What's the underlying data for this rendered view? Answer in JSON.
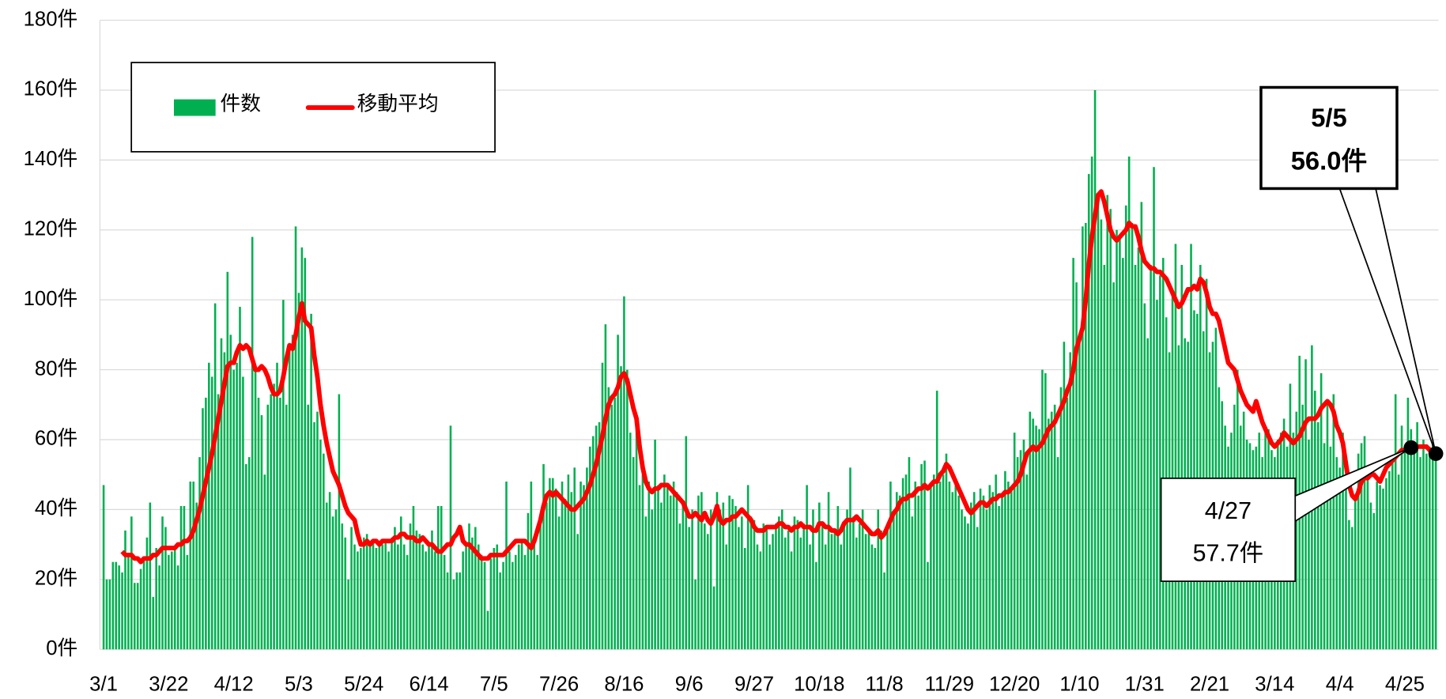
{
  "chart_data": {
    "type": "bar",
    "categories": [
      "3/1",
      null,
      null,
      null,
      null,
      null,
      null,
      null,
      null,
      null,
      null,
      null,
      null,
      null,
      null,
      null,
      null,
      null,
      null,
      null,
      null,
      "3/22",
      null,
      null,
      null,
      null,
      null,
      null,
      null,
      null,
      null,
      null,
      null,
      null,
      null,
      null,
      null,
      null,
      null,
      null,
      null,
      null,
      "4/12",
      null,
      null,
      null,
      null,
      null,
      null,
      null,
      null,
      null,
      null,
      null,
      null,
      null,
      null,
      null,
      null,
      null,
      null,
      null,
      null,
      "5/3",
      null,
      null,
      null,
      null,
      null,
      null,
      null,
      null,
      null,
      null,
      null,
      null,
      null,
      null,
      null,
      null,
      null,
      null,
      null,
      null,
      "5/24",
      null,
      null,
      null,
      null,
      null,
      null,
      null,
      null,
      null,
      null,
      null,
      null,
      null,
      null,
      null,
      null,
      null,
      null,
      null,
      null,
      "6/14",
      null,
      null,
      null,
      null,
      null,
      null,
      null,
      null,
      null,
      null,
      null,
      null,
      null,
      null,
      null,
      null,
      null,
      null,
      null,
      null,
      "7/5",
      null,
      null,
      null,
      null,
      null,
      null,
      null,
      null,
      null,
      null,
      null,
      null,
      null,
      null,
      null,
      null,
      null,
      null,
      null,
      null,
      "7/26",
      null,
      null,
      null,
      null,
      null,
      null,
      null,
      null,
      null,
      null,
      null,
      null,
      null,
      null,
      null,
      null,
      null,
      null,
      null,
      null,
      "8/16",
      null,
      null,
      null,
      null,
      null,
      null,
      null,
      null,
      null,
      null,
      null,
      null,
      null,
      null,
      null,
      null,
      null,
      null,
      null,
      null,
      "9/6",
      null,
      null,
      null,
      null,
      null,
      null,
      null,
      null,
      null,
      null,
      null,
      null,
      null,
      null,
      null,
      null,
      null,
      null,
      null,
      null,
      "9/27",
      null,
      null,
      null,
      null,
      null,
      null,
      null,
      null,
      null,
      null,
      null,
      null,
      null,
      null,
      null,
      null,
      null,
      null,
      null,
      null,
      "10/18",
      null,
      null,
      null,
      null,
      null,
      null,
      null,
      null,
      null,
      null,
      null,
      null,
      null,
      null,
      null,
      null,
      null,
      null,
      null,
      null,
      "11/8",
      null,
      null,
      null,
      null,
      null,
      null,
      null,
      null,
      null,
      null,
      null,
      null,
      null,
      null,
      null,
      null,
      null,
      null,
      null,
      null,
      "11/29",
      null,
      null,
      null,
      null,
      null,
      null,
      null,
      null,
      null,
      null,
      null,
      null,
      null,
      null,
      null,
      null,
      null,
      null,
      null,
      null,
      "12/20",
      null,
      null,
      null,
      null,
      null,
      null,
      null,
      null,
      null,
      null,
      null,
      null,
      null,
      null,
      null,
      null,
      null,
      null,
      null,
      null,
      "1/10",
      null,
      null,
      null,
      null,
      null,
      null,
      null,
      null,
      null,
      null,
      null,
      null,
      null,
      null,
      null,
      null,
      null,
      null,
      null,
      null,
      "1/31",
      null,
      null,
      null,
      null,
      null,
      null,
      null,
      null,
      null,
      null,
      null,
      null,
      null,
      null,
      null,
      null,
      null,
      null,
      null,
      null,
      "2/21",
      null,
      null,
      null,
      null,
      null,
      null,
      null,
      null,
      null,
      null,
      null,
      null,
      null,
      null,
      null,
      null,
      null,
      null,
      null,
      null,
      "3/14",
      null,
      null,
      null,
      null,
      null,
      null,
      null,
      null,
      null,
      null,
      null,
      null,
      null,
      null,
      null,
      null,
      null,
      null,
      null,
      null,
      "4/4",
      null,
      null,
      null,
      null,
      null,
      null,
      null,
      null,
      null,
      null,
      null,
      null,
      null,
      null,
      null,
      null,
      null,
      null,
      null,
      null,
      "4/25",
      null,
      null,
      null,
      null,
      null,
      null,
      null,
      null,
      null,
      null
    ],
    "series": [
      {
        "name": "件数",
        "type": "bar",
        "color": "#00b050",
        "values": [
          47,
          20,
          20,
          25,
          25,
          24,
          22,
          34,
          27,
          38,
          19,
          19,
          23,
          26,
          32,
          42,
          15,
          29,
          24,
          38,
          35,
          27,
          28,
          29,
          24,
          41,
          41,
          27,
          48,
          48,
          42,
          55,
          69,
          72,
          82,
          78,
          99,
          73,
          89,
          85,
          108,
          90,
          80,
          82,
          98,
          78,
          53,
          55,
          118,
          80,
          72,
          67,
          50,
          70,
          73,
          76,
          82,
          72,
          100,
          70,
          85,
          90,
          121,
          102,
          115,
          112,
          70,
          96,
          65,
          68,
          60,
          56,
          42,
          45,
          38,
          40,
          73,
          36,
          32,
          20,
          35,
          30,
          28,
          29,
          32,
          33,
          30,
          31,
          29,
          31,
          30,
          31,
          28,
          32,
          35,
          30,
          38,
          30,
          27,
          36,
          41,
          34,
          33,
          30,
          28,
          30,
          34,
          28,
          41,
          41,
          27,
          22,
          64,
          20,
          22,
          22,
          28,
          30,
          36,
          32,
          35,
          30,
          27,
          25,
          11,
          26,
          29,
          30,
          22,
          25,
          48,
          28,
          25,
          27,
          30,
          31,
          27,
          39,
          48,
          30,
          27,
          38,
          53,
          42,
          49,
          49,
          46,
          38,
          48,
          43,
          50,
          45,
          52,
          33,
          48,
          47,
          52,
          58,
          61,
          64,
          65,
          82,
          93,
          75,
          70,
          72,
          90,
          81,
          101,
          80,
          62,
          55,
          65,
          47,
          50,
          38,
          48,
          40,
          60,
          47,
          42,
          50,
          47,
          44,
          48,
          45,
          36,
          42,
          61,
          35,
          40,
          20,
          44,
          45,
          36,
          33,
          40,
          18,
          45,
          40,
          42,
          30,
          44,
          43,
          41,
          35,
          38,
          29,
          47,
          38,
          37,
          30,
          28,
          36,
          35,
          30,
          33,
          36,
          38,
          40,
          32,
          34,
          28,
          38,
          37,
          32,
          36,
          47,
          30,
          40,
          25,
          42,
          36,
          30,
          45,
          33,
          34,
          41,
          30,
          36,
          40,
          52,
          38,
          32,
          36,
          40,
          33,
          34,
          30,
          29,
          40,
          34,
          22,
          35,
          48,
          38,
          45,
          44,
          49,
          50,
          55,
          38,
          48,
          44,
          53,
          54,
          25,
          47,
          50,
          74,
          48,
          50,
          56,
          48,
          45,
          47,
          44,
          40,
          38,
          36,
          42,
          45,
          35,
          46,
          44,
          40,
          47,
          45,
          50,
          41,
          44,
          51,
          48,
          46,
          62,
          55,
          57,
          60,
          50,
          68,
          66,
          64,
          63,
          80,
          79,
          66,
          68,
          70,
          55,
          75,
          88,
          72,
          85,
          112,
          105,
          90,
          121,
          122,
          136,
          141,
          160,
          128,
          123,
          110,
          130,
          126,
          105,
          120,
          118,
          112,
          127,
          141,
          122,
          110,
          115,
          128,
          99,
          89,
          110,
          138,
          100,
          107,
          112,
          95,
          85,
          102,
          116,
          87,
          110,
          89,
          88,
          116,
          97,
          96,
          110,
          91,
          106,
          85,
          88,
          92,
          75,
          71,
          64,
          58,
          62,
          70,
          80,
          64,
          68,
          60,
          59,
          57,
          58,
          62,
          55,
          64,
          63,
          57,
          55,
          60,
          62,
          66,
          58,
          76,
          62,
          68,
          84,
          70,
          83,
          60,
          87,
          74,
          65,
          79,
          59,
          70,
          58,
          73,
          55,
          52,
          62,
          49,
          37,
          35,
          43,
          56,
          59,
          61,
          49,
          42,
          39,
          48,
          47,
          46,
          49,
          51,
          55,
          73,
          50,
          64,
          57,
          72,
          63,
          56,
          65,
          55,
          60,
          56,
          58,
          60,
          56
        ]
      },
      {
        "name": "移動平均",
        "type": "line",
        "color": "#ff0000",
        "values": [
          null,
          null,
          null,
          null,
          null,
          null,
          28,
          27,
          27,
          27,
          26,
          26,
          25,
          26,
          26,
          26,
          27,
          27,
          28,
          29,
          29,
          29,
          29,
          29,
          30,
          30,
          31,
          31,
          32,
          34,
          37,
          40,
          44,
          48,
          52,
          56,
          61,
          66,
          71,
          76,
          81,
          82,
          82,
          85,
          87,
          86,
          87,
          86,
          83,
          80,
          80,
          81,
          80,
          78,
          75,
          73,
          73,
          74,
          78,
          83,
          87,
          86,
          90,
          95,
          99,
          94,
          93,
          92,
          84,
          78,
          70,
          64,
          59,
          55,
          51,
          49,
          47,
          44,
          41,
          39,
          38,
          37,
          33,
          30,
          30,
          31,
          30,
          31,
          31,
          30,
          31,
          31,
          31,
          31,
          32,
          32,
          33,
          33,
          32,
          32,
          32,
          31,
          31,
          32,
          31,
          30,
          30,
          29,
          28,
          28,
          29,
          30,
          30,
          32,
          33,
          35,
          31,
          30,
          30,
          29,
          28,
          27,
          26,
          26,
          26,
          27,
          27,
          27,
          27,
          27,
          28,
          29,
          30,
          31,
          31,
          31,
          31,
          30,
          29,
          31,
          34,
          37,
          41,
          44,
          45,
          44,
          45,
          44,
          43,
          42,
          41,
          40,
          40,
          41,
          42,
          43,
          45,
          47,
          50,
          53,
          57,
          61,
          66,
          70,
          72,
          73,
          75,
          78,
          79,
          77,
          73,
          69,
          66,
          58,
          52,
          48,
          46,
          45,
          46,
          46,
          47,
          47,
          47,
          46,
          45,
          44,
          43,
          42,
          40,
          38,
          38,
          39,
          38,
          37,
          39,
          37,
          36,
          38,
          41,
          37,
          36,
          37,
          37,
          38,
          38,
          39,
          40,
          39,
          38,
          37,
          35,
          34,
          34,
          34,
          35,
          35,
          35,
          35,
          36,
          36,
          35,
          35,
          34,
          35,
          35,
          36,
          35,
          35,
          35,
          34,
          34,
          36,
          36,
          35,
          35,
          34,
          34,
          33,
          34,
          36,
          37,
          37,
          37,
          38,
          37,
          36,
          35,
          34,
          33,
          33,
          34,
          32,
          33,
          35,
          37,
          39,
          40,
          42,
          43,
          43,
          44,
          44,
          45,
          46,
          46,
          47,
          46,
          47,
          48,
          48,
          50,
          51,
          53,
          52,
          50,
          48,
          46,
          44,
          42,
          40,
          39,
          40,
          41,
          42,
          42,
          41,
          42,
          43,
          43,
          44,
          44,
          45,
          45,
          46,
          47,
          48,
          50,
          53,
          56,
          57,
          58,
          57,
          58,
          59,
          61,
          63,
          64,
          65,
          67,
          69,
          71,
          74,
          76,
          80,
          86,
          89,
          92,
          100,
          110,
          118,
          124,
          130,
          131,
          128,
          124,
          120,
          118,
          117,
          118,
          119,
          120,
          122,
          121,
          121,
          118,
          114,
          111,
          110,
          109,
          109,
          108,
          108,
          107,
          106,
          104,
          102,
          100,
          98,
          99,
          101,
          103,
          103,
          104,
          103,
          106,
          105,
          102,
          98,
          96,
          96,
          94,
          90,
          86,
          82,
          81,
          80,
          77,
          74,
          72,
          70,
          69,
          68,
          71,
          68,
          65,
          63,
          61,
          59,
          58,
          59,
          60,
          62,
          61,
          60,
          59,
          60,
          61,
          63,
          65,
          66,
          66,
          66,
          67,
          69,
          70,
          71,
          70,
          68,
          64,
          62,
          59,
          53,
          47,
          44,
          43,
          45,
          48,
          49,
          49,
          50,
          50,
          49,
          48,
          50,
          52,
          53,
          54,
          55,
          56,
          57,
          57,
          57,
          57.7,
          58,
          58,
          58,
          58,
          58,
          57,
          57,
          56
        ]
      }
    ],
    "ylim": [
      0,
      180
    ],
    "yticks": [
      {
        "value": 0,
        "label": "0件"
      },
      {
        "value": 20,
        "label": "20件"
      },
      {
        "value": 40,
        "label": "40件"
      },
      {
        "value": 60,
        "label": "60件"
      },
      {
        "value": 80,
        "label": "80件"
      },
      {
        "value": 100,
        "label": "100件"
      },
      {
        "value": 120,
        "label": "120件"
      },
      {
        "value": 140,
        "label": "140件"
      },
      {
        "value": 160,
        "label": "160件"
      },
      {
        "value": 180,
        "label": "180件"
      }
    ],
    "grid": true,
    "legend": "top-left",
    "annotations": [
      {
        "lines": [
          "5/5",
          "56.0件"
        ]
      },
      {
        "lines": [
          "4/27",
          "57.7件"
        ]
      }
    ]
  }
}
